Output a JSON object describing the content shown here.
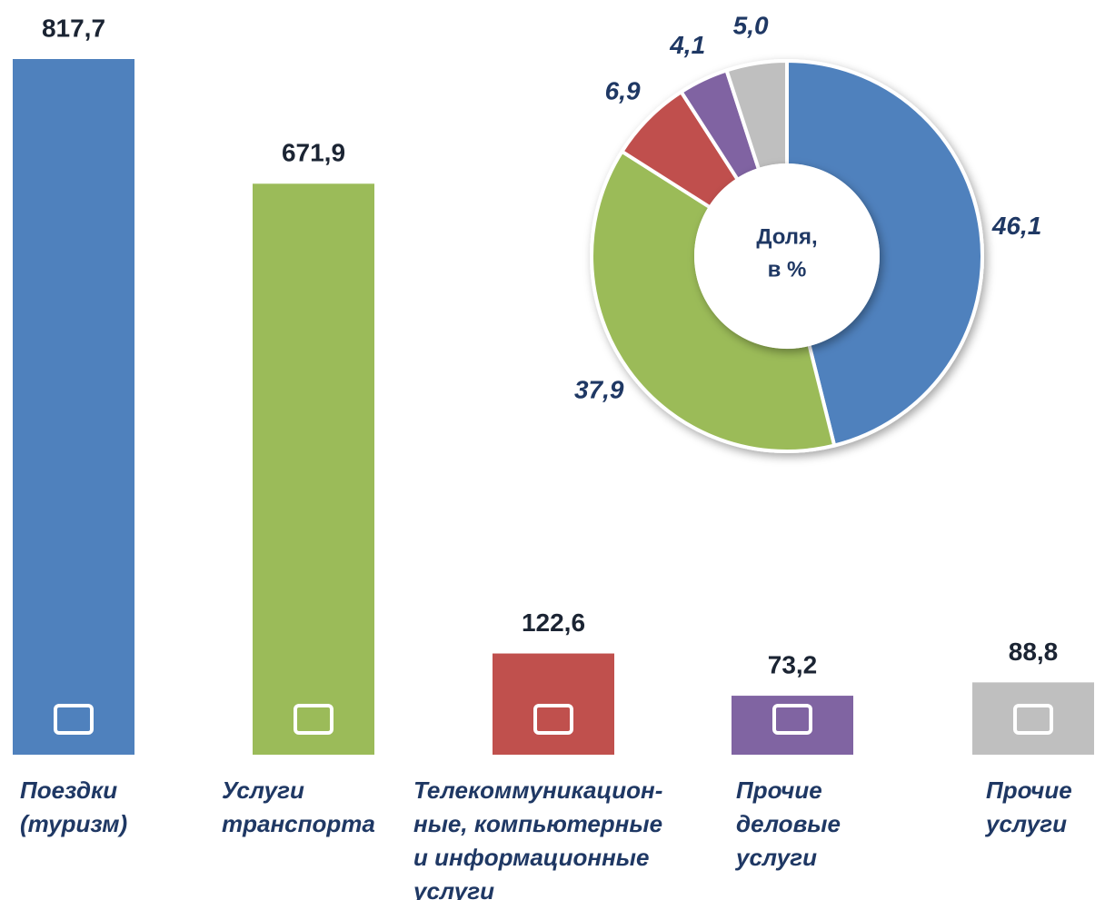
{
  "chart_data": [
    {
      "type": "bar",
      "categories": [
        [
          "Поездки",
          "(туризм)"
        ],
        [
          "Услуги",
          "транспорта"
        ],
        [
          "Телекоммуникацион-",
          "ные, компьютерные",
          "и информационные",
          "услуги"
        ],
        [
          "Прочие",
          "деловые",
          "услуги"
        ],
        [
          "Прочие",
          "услуги"
        ]
      ],
      "values": [
        817.7,
        671.9,
        122.6,
        73.2,
        88.8
      ],
      "value_labels": [
        "817,7",
        "671,9",
        "122,6",
        "73,2",
        "88,8"
      ],
      "colors": [
        "#4f81bd",
        "#9bbb59",
        "#c0504d",
        "#8064a2",
        "#bfbfbf"
      ]
    },
    {
      "type": "pie",
      "center_label": [
        "Доля,",
        "в %"
      ],
      "values": [
        46.1,
        37.9,
        6.9,
        4.1,
        5.0
      ],
      "value_labels": [
        "46,1",
        "37,9",
        "6,9",
        "4,1",
        "5,0"
      ],
      "colors": [
        "#4f81bd",
        "#9bbb59",
        "#c0504d",
        "#8064a2",
        "#bfbfbf"
      ]
    }
  ]
}
